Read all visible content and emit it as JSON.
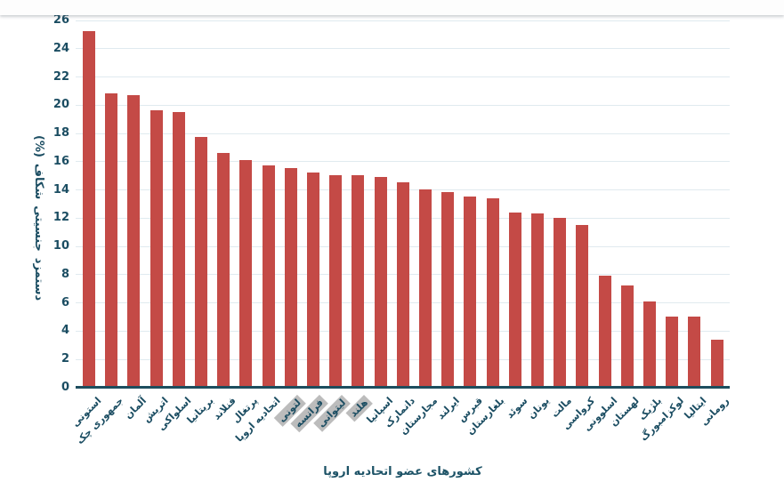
{
  "page": {
    "background": "#ffffff",
    "top_band_shadow": "#c9ced2"
  },
  "colors": {
    "bar": "#c44a46",
    "axis_text": "#1b4d62",
    "gridline": "#e0eaef",
    "axis_line": "#1d4d5e",
    "highlight_background": "#bcbcbc"
  },
  "chart_data": {
    "type": "bar",
    "title": "",
    "xlabel": "کشورهای عضو اتحادیه اروپا",
    "ylabel": "شکاف جنسیتی دستمزد (%)",
    "ylabel_words": [
      "(%)",
      "شکاف",
      "جنسیتی",
      "دستمزد"
    ],
    "ylim": [
      0,
      26
    ],
    "ytick_step": 2,
    "yticks": [
      0,
      2,
      4,
      6,
      8,
      10,
      12,
      14,
      16,
      18,
      20,
      22,
      24,
      26
    ],
    "grid": true,
    "legend": "none",
    "bar_color": "#c44a46",
    "categories": [
      "استونی",
      "جمهوری چک",
      "آلمان",
      "اتریش",
      "اسلواکی",
      "بریتانیا",
      "فنلاند",
      "پرتغال",
      "اتحادیه اروپا",
      "لتونی",
      "فرانسه",
      "لیتوانی",
      "هلند",
      "اسپانیا",
      "دانمارک",
      "مجارستان",
      "ایرلند",
      "قبرس",
      "بلغارستان",
      "سوئد",
      "یونان",
      "مالت",
      "کرواسی",
      "اسلوونی",
      "لهستان",
      "بلژیک",
      "لوکزامبورگ",
      "ایتالیا",
      "رومانی"
    ],
    "values": [
      25.1,
      20.7,
      20.6,
      19.5,
      19.4,
      17.6,
      16.5,
      16.0,
      15.6,
      15.4,
      15.1,
      14.9,
      14.9,
      14.8,
      14.4,
      13.9,
      13.7,
      13.4,
      13.3,
      12.3,
      12.2,
      11.9,
      11.4,
      7.8,
      7.1,
      6.0,
      4.9,
      4.9,
      3.3
    ],
    "highlighted_categories": [
      "لتونی",
      "فرانسه",
      "لیتوانی",
      "هلند"
    ],
    "highlighted_indices": [
      9,
      10,
      11,
      12
    ]
  }
}
